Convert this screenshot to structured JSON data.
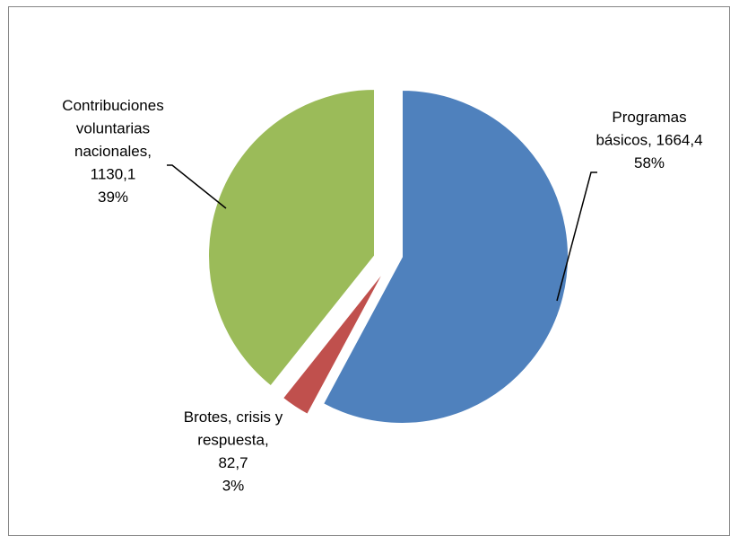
{
  "chart_data": {
    "type": "pie",
    "title": "",
    "slices": [
      {
        "name": "Programas básicos",
        "value_text": "1664,4",
        "value": 1664.4,
        "percent_text": "58%",
        "color": "#4F81BD"
      },
      {
        "name": "Brotes, crisis y respuesta",
        "value_text": "82,7",
        "value": 82.7,
        "percent_text": "3%",
        "color": "#C0504D"
      },
      {
        "name": "Contribuciones voluntarias nacionales",
        "value_text": "1130,1",
        "value": 1130.1,
        "percent_text": "39%",
        "color": "#9BBB59"
      }
    ],
    "labels": [
      {
        "lines": [
          "Programas",
          "básicos, 1664,4",
          "58%"
        ]
      },
      {
        "lines": [
          "Brotes, crisis y",
          "respuesta,",
          "82,7",
          "3%"
        ]
      },
      {
        "lines": [
          "Contribuciones",
          "voluntarias",
          "nacionales,",
          "1130,1",
          "39%"
        ]
      }
    ],
    "exploded": true,
    "legend": "none"
  }
}
